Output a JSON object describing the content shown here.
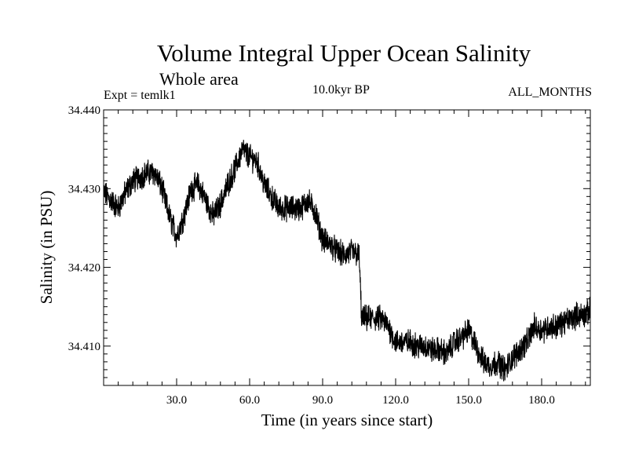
{
  "chart_data": {
    "type": "line",
    "title": "Volume Integral Upper Ocean Salinity",
    "subtitle": "Whole area",
    "annotations": {
      "experiment": "Expt = temlk1",
      "period": "10.0kyr BP",
      "months": "ALL_MONTHS"
    },
    "xlabel": "Time (in years since start)",
    "ylabel": "Salinity (in PSU)",
    "xlim": [
      0,
      200
    ],
    "ylim": [
      34.405,
      34.44
    ],
    "xticks": [
      30,
      60,
      90,
      120,
      150,
      180
    ],
    "xtick_labels": [
      "30.0",
      "60.0",
      "90.0",
      "120.0",
      "150.0",
      "180.0"
    ],
    "yticks": [
      34.41,
      34.42,
      34.43,
      34.44
    ],
    "ytick_labels": [
      "34.410",
      "34.420",
      "34.430",
      "34.440"
    ],
    "grid": false,
    "series": [
      {
        "name": "Salinity",
        "color": "#000000",
        "x": [
          0,
          3,
          6,
          9,
          12,
          15,
          18,
          21,
          24,
          27,
          30,
          33,
          36,
          39,
          42,
          45,
          48,
          51,
          54,
          57,
          60,
          63,
          66,
          69,
          72,
          75,
          78,
          81,
          84,
          87,
          90,
          93,
          96,
          99,
          102,
          105,
          106,
          108,
          111,
          114,
          117,
          120,
          123,
          126,
          129,
          132,
          135,
          138,
          141,
          144,
          147,
          150,
          153,
          156,
          159,
          162,
          165,
          168,
          171,
          174,
          177,
          180,
          183,
          186,
          189,
          192,
          195,
          198,
          200
        ],
        "y": [
          34.4295,
          34.4285,
          34.4275,
          34.4295,
          34.431,
          34.4315,
          34.432,
          34.432,
          34.43,
          34.4265,
          34.424,
          34.4265,
          34.43,
          34.4305,
          34.4285,
          34.4265,
          34.428,
          34.4305,
          34.4325,
          34.435,
          34.434,
          34.4335,
          34.4305,
          34.429,
          34.4275,
          34.4275,
          34.4275,
          34.4275,
          34.4285,
          34.427,
          34.4235,
          34.423,
          34.422,
          34.4215,
          34.422,
          34.4215,
          34.4135,
          34.4135,
          34.4135,
          34.4135,
          34.4125,
          34.4105,
          34.4105,
          34.4105,
          34.41,
          34.41,
          34.4095,
          34.4095,
          34.409,
          34.4105,
          34.411,
          34.412,
          34.41,
          34.408,
          34.4075,
          34.408,
          34.407,
          34.4085,
          34.4095,
          34.4105,
          34.4125,
          34.412,
          34.4125,
          34.4125,
          34.413,
          34.4135,
          34.414,
          34.414,
          34.4145
        ]
      }
    ]
  }
}
